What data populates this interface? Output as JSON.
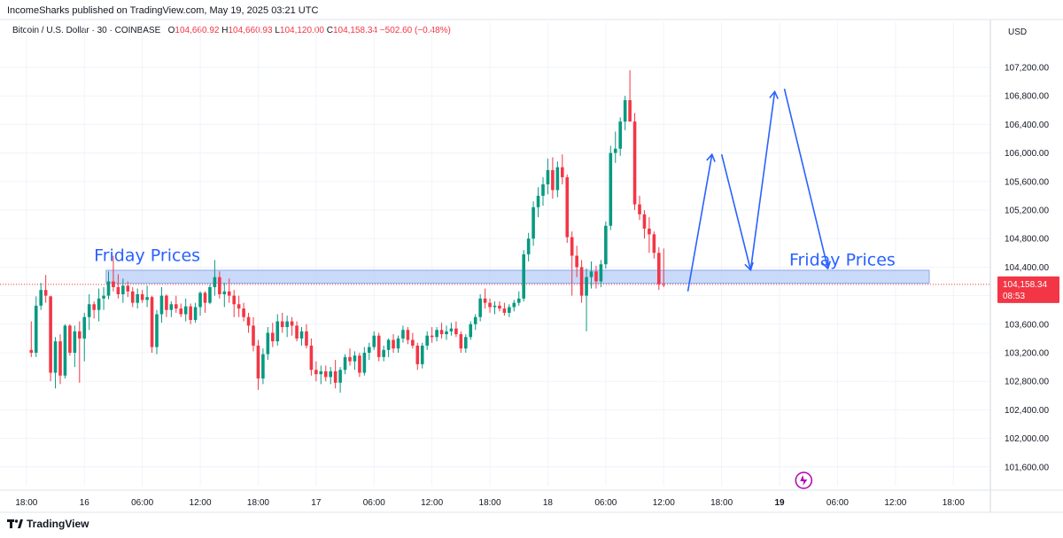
{
  "header": {
    "published": "IncomeSharks published on TradingView.com, May 19, 2025 03:21 UTC"
  },
  "legend": {
    "symbol": "Bitcoin / U.S. Dollar · 30 · COINBASE",
    "o_label": "O",
    "o_value": "104,660.92",
    "h_label": "H",
    "h_value": "104,660.93",
    "l_label": "L",
    "l_value": "104,120.00",
    "c_label": "C",
    "c_value": "104,158.34",
    "change": "−502.60 (−0.48%)"
  },
  "currency": "USD",
  "footer": {
    "logo_text": "TradingView"
  },
  "colors": {
    "up": "#089981",
    "down": "#F23645",
    "annotation": "#2962FF",
    "zone_fill": "#BBD0F7",
    "grid": "#F0F3FA"
  },
  "annotations": {
    "left_label": "Friday Prices",
    "right_label": "Friday Prices"
  },
  "chart_data": {
    "type": "candlestick",
    "y_axis": {
      "ticks": [
        "107,200.00",
        "106,800.00",
        "106,400.00",
        "106,000.00",
        "105,600.00",
        "105,200.00",
        "104,800.00",
        "104,400.00",
        "104,000.00",
        "103,600.00",
        "103,200.00",
        "102,800.00",
        "102,400.00",
        "102,000.00",
        "101,600.00"
      ],
      "tick_values": [
        107200,
        106800,
        106400,
        106000,
        105600,
        105200,
        104800,
        104400,
        104000,
        103600,
        103200,
        102800,
        102400,
        102000,
        101600
      ],
      "range": [
        101450,
        107750
      ]
    },
    "x_axis": {
      "labels": [
        "18:00",
        "16",
        "06:00",
        "12:00",
        "18:00",
        "17",
        "06:00",
        "12:00",
        "18:00",
        "18",
        "06:00",
        "12:00",
        "18:00",
        "19",
        "06:00",
        "12:00",
        "18:00"
      ],
      "label_index": [
        -1,
        11,
        23,
        35,
        47,
        59,
        71,
        83,
        95,
        107,
        119,
        131,
        143,
        155,
        167,
        179,
        191
      ],
      "bold_labels": [
        "19"
      ]
    },
    "last_price": {
      "value": 104158.34,
      "label": "104,158.34",
      "countdown": "08:53"
    },
    "zone": {
      "from_index": 15.5,
      "to_index": 186,
      "low": 104180,
      "high": 104350
    },
    "candles": [
      [
        103240,
        103640,
        103140,
        103200
      ],
      [
        103200,
        103990,
        103140,
        103860
      ],
      [
        103860,
        104180,
        103800,
        104080
      ],
      [
        104080,
        104290,
        103900,
        104000
      ],
      [
        103990,
        104000,
        102800,
        102920
      ],
      [
        102920,
        103420,
        102700,
        103360
      ],
      [
        103360,
        103460,
        102760,
        102880
      ],
      [
        102880,
        103600,
        102840,
        103580
      ],
      [
        103580,
        103600,
        103160,
        103200
      ],
      [
        103200,
        103580,
        103000,
        103500
      ],
      [
        103500,
        103640,
        102780,
        103400
      ],
      [
        103400,
        103760,
        103080,
        103700
      ],
      [
        103700,
        104020,
        103520,
        103880
      ],
      [
        103880,
        103920,
        103680,
        103800
      ],
      [
        103800,
        104100,
        103640,
        103960
      ],
      [
        103960,
        104120,
        103800,
        104000
      ],
      [
        104000,
        104340,
        103950,
        104200
      ],
      [
        104200,
        104560,
        104060,
        104120
      ],
      [
        104120,
        104300,
        103960,
        104020
      ],
      [
        104020,
        104240,
        103900,
        104140
      ],
      [
        104140,
        104200,
        103980,
        104060
      ],
      [
        104060,
        104120,
        103840,
        103900
      ],
      [
        103900,
        104100,
        103820,
        104020
      ],
      [
        104020,
        104080,
        103900,
        103940
      ],
      [
        103940,
        104140,
        103840,
        103980
      ],
      [
        103980,
        104000,
        103200,
        103280
      ],
      [
        103280,
        103800,
        103180,
        103740
      ],
      [
        103740,
        104120,
        103620,
        104000
      ],
      [
        104000,
        104020,
        103700,
        103800
      ],
      [
        103800,
        103920,
        103700,
        103880
      ],
      [
        103880,
        104000,
        103760,
        103820
      ],
      [
        103820,
        103890,
        103700,
        103740
      ],
      [
        103740,
        103960,
        103640,
        103850
      ],
      [
        103850,
        103890,
        103600,
        103660
      ],
      [
        103660,
        103900,
        103620,
        103840
      ],
      [
        103840,
        104060,
        103720,
        104040
      ],
      [
        104040,
        104060,
        103760,
        103900
      ],
      [
        103900,
        104160,
        103880,
        104120
      ],
      [
        104120,
        104500,
        104000,
        104260
      ],
      [
        104260,
        104340,
        103960,
        104020
      ],
      [
        104020,
        104180,
        103840,
        104060
      ],
      [
        104060,
        104240,
        103900,
        104000
      ],
      [
        104000,
        104080,
        103700,
        103880
      ],
      [
        103880,
        104000,
        103700,
        103820
      ],
      [
        103820,
        103900,
        103640,
        103700
      ],
      [
        103700,
        103760,
        103480,
        103580
      ],
      [
        103580,
        103700,
        103220,
        103300
      ],
      [
        103300,
        103380,
        102680,
        102840
      ],
      [
        102840,
        103260,
        102760,
        103180
      ],
      [
        103180,
        103560,
        103100,
        103480
      ],
      [
        103480,
        103620,
        103280,
        103360
      ],
      [
        103360,
        103740,
        103300,
        103640
      ],
      [
        103640,
        103760,
        103480,
        103560
      ],
      [
        103560,
        103720,
        103420,
        103640
      ],
      [
        103640,
        103700,
        103440,
        103580
      ],
      [
        103580,
        103640,
        103360,
        103400
      ],
      [
        103400,
        103560,
        103300,
        103500
      ],
      [
        103500,
        103600,
        103260,
        103300
      ],
      [
        103300,
        103400,
        102880,
        102960
      ],
      [
        102960,
        103080,
        102800,
        102900
      ],
      [
        102900,
        103020,
        102760,
        102940
      ],
      [
        102940,
        103020,
        102800,
        102860
      ],
      [
        102860,
        103000,
        102760,
        102940
      ],
      [
        102940,
        103100,
        102700,
        102780
      ],
      [
        102780,
        103000,
        102640,
        102960
      ],
      [
        102960,
        103180,
        102900,
        103140
      ],
      [
        103140,
        103260,
        103020,
        103080
      ],
      [
        103080,
        103220,
        102960,
        103160
      ],
      [
        103160,
        103200,
        102860,
        102920
      ],
      [
        102920,
        103280,
        102880,
        103200
      ],
      [
        103200,
        103340,
        103100,
        103280
      ],
      [
        103280,
        103500,
        103240,
        103440
      ],
      [
        103440,
        103480,
        103080,
        103140
      ],
      [
        103140,
        103300,
        103080,
        103240
      ],
      [
        103240,
        103400,
        103140,
        103380
      ],
      [
        103380,
        103460,
        103200,
        103260
      ],
      [
        103260,
        103440,
        103200,
        103400
      ],
      [
        103400,
        103580,
        103340,
        103520
      ],
      [
        103520,
        103560,
        103320,
        103380
      ],
      [
        103380,
        103480,
        103260,
        103300
      ],
      [
        103300,
        103340,
        102960,
        103040
      ],
      [
        103040,
        103340,
        102980,
        103300
      ],
      [
        103300,
        103500,
        103240,
        103440
      ],
      [
        103440,
        103560,
        103340,
        103420
      ],
      [
        103420,
        103560,
        103360,
        103520
      ],
      [
        103520,
        103620,
        103400,
        103460
      ],
      [
        103460,
        103580,
        103380,
        103500
      ],
      [
        103500,
        103620,
        103440,
        103540
      ],
      [
        103540,
        103640,
        103420,
        103460
      ],
      [
        103460,
        103500,
        103200,
        103260
      ],
      [
        103260,
        103460,
        103200,
        103420
      ],
      [
        103420,
        103640,
        103380,
        103600
      ],
      [
        103600,
        103740,
        103520,
        103700
      ],
      [
        103700,
        104020,
        103640,
        103960
      ],
      [
        103960,
        104100,
        103820,
        103900
      ],
      [
        103900,
        103960,
        103760,
        103840
      ],
      [
        103840,
        103920,
        103740,
        103860
      ],
      [
        103860,
        103920,
        103780,
        103820
      ],
      [
        103820,
        103900,
        103720,
        103760
      ],
      [
        103760,
        103880,
        103700,
        103840
      ],
      [
        103840,
        103940,
        103780,
        103900
      ],
      [
        103900,
        104060,
        103860,
        103960
      ],
      [
        103960,
        104640,
        103920,
        104580
      ],
      [
        104580,
        104880,
        104480,
        104800
      ],
      [
        104800,
        105320,
        104700,
        105240
      ],
      [
        105240,
        105520,
        105100,
        105400
      ],
      [
        105400,
        105660,
        105260,
        105560
      ],
      [
        105560,
        105920,
        105420,
        105760
      ],
      [
        105760,
        105940,
        105360,
        105480
      ],
      [
        105480,
        105880,
        105380,
        105800
      ],
      [
        105800,
        105980,
        105560,
        105660
      ],
      [
        105660,
        105700,
        104740,
        104820
      ],
      [
        104820,
        104900,
        104000,
        104560
      ],
      [
        104560,
        104700,
        104260,
        104400
      ],
      [
        104400,
        104500,
        103900,
        104000
      ],
      [
        104000,
        104380,
        103500,
        104260
      ],
      [
        104260,
        104480,
        104100,
        104340
      ],
      [
        104340,
        104420,
        104100,
        104200
      ],
      [
        104200,
        104500,
        104120,
        104440
      ],
      [
        104440,
        105040,
        104380,
        104980
      ],
      [
        104980,
        106100,
        104920,
        106000
      ],
      [
        106000,
        106300,
        105860,
        106060
      ],
      [
        106060,
        106500,
        105960,
        106440
      ],
      [
        106440,
        106800,
        106320,
        106740
      ],
      [
        106740,
        107160,
        106500,
        106440
      ],
      [
        106440,
        106560,
        105200,
        105280
      ],
      [
        105280,
        105400,
        105060,
        105140
      ],
      [
        105140,
        105200,
        104800,
        104940
      ],
      [
        104940,
        105100,
        104600,
        104860
      ],
      [
        104860,
        104900,
        104520,
        104600
      ],
      [
        104600,
        104680,
        104080,
        104160
      ],
      [
        104160,
        104661,
        104120,
        104158
      ]
    ]
  }
}
